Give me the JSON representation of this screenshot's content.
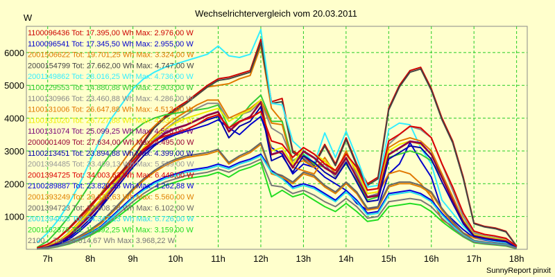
{
  "chart_data": {
    "type": "line",
    "title": "Wechselrichtervergleich vom 20.03.2011",
    "ylabel": "W",
    "xlabel": "",
    "credit": "SunnyReport pinxit",
    "x_unit": "h",
    "xlim": [
      6.5,
      18.25
    ],
    "ylim": [
      0,
      6800
    ],
    "x_ticks": [
      7,
      8,
      9,
      10,
      11,
      12,
      13,
      14,
      15,
      16,
      17,
      18
    ],
    "y_ticks": [
      1000,
      2000,
      3000,
      4000,
      5000,
      6000
    ],
    "x_tick_labels": [
      "7h",
      "8h",
      "9h",
      "10h",
      "11h",
      "12h",
      "13h",
      "14h",
      "15h",
      "16h",
      "17h",
      "18h"
    ],
    "y_tick_labels": [
      "1000",
      "2000",
      "3000",
      "4000",
      "5000",
      "6000"
    ],
    "grid": true,
    "legend_position": "top-left",
    "x": [
      6.75,
      7.0,
      7.25,
      7.5,
      7.75,
      8.0,
      8.25,
      8.5,
      8.75,
      9.0,
      9.25,
      9.5,
      9.75,
      10.0,
      10.25,
      10.5,
      10.75,
      11.0,
      11.25,
      11.5,
      11.75,
      12.0,
      12.25,
      12.5,
      12.75,
      13.0,
      13.25,
      13.5,
      13.75,
      14.0,
      14.25,
      14.5,
      14.75,
      15.0,
      15.25,
      15.5,
      15.75,
      16.0,
      16.25,
      16.5,
      16.75,
      17.0,
      17.25,
      17.5,
      17.75,
      18.0
    ],
    "series": [
      {
        "name": "1100096436 Tot: 17.395,00 Wh Max: 2.976,00 W",
        "color": "#CC0000",
        "values": [
          40,
          150,
          350,
          650,
          1000,
          1350,
          1700,
          2050,
          2400,
          2800,
          3300,
          3750,
          4050,
          4300,
          4500,
          4750,
          5000,
          5200,
          5250,
          5350,
          5450,
          6400,
          4500,
          4600,
          3000,
          2800,
          2600,
          3200,
          2600,
          3400,
          2600,
          2000,
          2200,
          4300,
          5000,
          5450,
          5550,
          4900,
          4000,
          3300,
          2200,
          800,
          700,
          650,
          550,
          100
        ]
      },
      {
        "name": "1100096541 Tot: 17.345,50 Wh Max: 2.955,00 W",
        "color": "#0000CC",
        "values": [
          20,
          60,
          150,
          300,
          550,
          850,
          1300,
          1800,
          2300,
          2700,
          2950,
          3200,
          3350,
          3500,
          3600,
          3700,
          3800,
          3950,
          3700,
          3500,
          3800,
          4050,
          3100,
          2900,
          2300,
          2600,
          2500,
          2200,
          2000,
          1800,
          1400,
          1200,
          1300,
          2300,
          2600,
          3250,
          2700,
          2200,
          1200,
          900,
          600,
          350,
          280,
          240,
          200,
          50
        ]
      },
      {
        "name": "2001506622 Tot: 19.701,25 Wh Max: 3.324,00 W",
        "color": "#E07800",
        "values": [
          30,
          110,
          250,
          500,
          850,
          1250,
          1700,
          2200,
          2650,
          3100,
          3450,
          3750,
          4000,
          4200,
          4450,
          4700,
          4950,
          5000,
          5050,
          5200,
          5300,
          6200,
          4300,
          3900,
          2500,
          2400,
          2300,
          2800,
          2300,
          3000,
          2300,
          1600,
          1700,
          2300,
          2400,
          2300,
          2000,
          1600,
          900,
          700,
          500,
          350,
          300,
          280,
          240,
          60
        ]
      },
      {
        "name": "2000154799 Tot: 27.662,00 Wh Max: 4.747,00 W",
        "color": "#444444",
        "values": [
          35,
          140,
          340,
          640,
          980,
          1320,
          1680,
          2020,
          2380,
          2780,
          3250,
          3700,
          4000,
          4250,
          4450,
          4700,
          4950,
          5150,
          5200,
          5300,
          5400,
          6300,
          4450,
          4500,
          2950,
          2750,
          2550,
          3150,
          2550,
          3350,
          2550,
          1950,
          2150,
          4250,
          4950,
          5400,
          5500,
          4850,
          3950,
          3250,
          2150,
          780,
          680,
          630,
          530,
          90
        ]
      },
      {
        "name": "2001149862 Tot: 28.016,25 Wh Max: 4.736,00 W",
        "color": "#33EEFF",
        "values": [
          200,
          500,
          900,
          1400,
          2000,
          2700,
          3400,
          4000,
          4450,
          4900,
          5200,
          5400,
          5550,
          5650,
          5750,
          5850,
          5950,
          6200,
          5900,
          5850,
          5950,
          6700,
          4450,
          4400,
          3300,
          3000,
          2600,
          3550,
          2800,
          3600,
          2800,
          1900,
          1950,
          3650,
          3850,
          3800,
          3100,
          2600,
          1500,
          1100,
          700,
          400,
          300,
          250,
          200,
          60
        ]
      },
      {
        "name": "1100129553 Tot: 14.880,88 Wh Max: 2.903,00 W",
        "color": "#33CC33",
        "values": [
          60,
          250,
          600,
          1000,
          1500,
          2000,
          2500,
          2950,
          3300,
          3600,
          3850,
          4000,
          4100,
          4150,
          4200,
          4250,
          4300,
          4400,
          3700,
          4000,
          4400,
          4700,
          3900,
          3900,
          2700,
          2900,
          2600,
          2500,
          2300,
          2600,
          2100,
          1500,
          1600,
          2800,
          2900,
          3000,
          2900,
          2700,
          2200,
          1500,
          900,
          500,
          400,
          350,
          280,
          80
        ]
      },
      {
        "name": "1100130966 Tot: 23.460,88 Wh Max: 4.286,00 W",
        "color": "#888888",
        "values": [
          20,
          90,
          220,
          450,
          750,
          1100,
          1450,
          1850,
          2250,
          2650,
          3000,
          3350,
          3650,
          3900,
          4100,
          4300,
          4450,
          4450,
          3900,
          4100,
          4200,
          4500,
          3700,
          3500,
          2700,
          2800,
          2500,
          2600,
          2200,
          2700,
          2300,
          1600,
          1700,
          3200,
          3500,
          3750,
          3650,
          3400,
          2600,
          1800,
          1000,
          500,
          400,
          350,
          300,
          80
        ]
      },
      {
        "name": "1100131006 Tot: 26.647,88 Wh Max: 4.513,00 W",
        "color": "#E07800",
        "values": [
          25,
          100,
          230,
          470,
          800,
          1150,
          1500,
          1900,
          2300,
          2700,
          3100,
          3450,
          3750,
          4000,
          4200,
          4400,
          4550,
          4550,
          4000,
          4150,
          4300,
          4550,
          3850,
          3800,
          2600,
          2700,
          2500,
          2700,
          2300,
          2900,
          2400,
          1700,
          1750,
          3100,
          3300,
          3400,
          3300,
          3000,
          2300,
          1600,
          900,
          450,
          380,
          330,
          280,
          70
        ]
      },
      {
        "name": "1100131020 Tot: 26.727,88 Wh Max: 4.534,00 W",
        "color": "#EEEE00",
        "values": [
          25,
          100,
          240,
          480,
          820,
          1170,
          1520,
          1920,
          2320,
          2720,
          3100,
          3400,
          3650,
          3850,
          4000,
          4100,
          4200,
          4300,
          3900,
          4100,
          4250,
          4550,
          3000,
          3100,
          2600,
          3100,
          2900,
          2700,
          2400,
          2900,
          2400,
          1700,
          1750,
          3000,
          3200,
          3300,
          3200,
          2900,
          2200,
          1500,
          900,
          450,
          380,
          330,
          280,
          70
        ]
      },
      {
        "name": "1100131074 Tot: 25.099,25 Wh Max: 4.565,00 W",
        "color": "#770077",
        "values": [
          20,
          80,
          200,
          420,
          720,
          1050,
          1400,
          1800,
          2200,
          2600,
          3000,
          3300,
          3550,
          3700,
          3800,
          3950,
          4100,
          4200,
          3600,
          3900,
          4050,
          4500,
          2900,
          3000,
          2500,
          3000,
          2800,
          2500,
          2300,
          2800,
          2200,
          1600,
          1650,
          2900,
          3100,
          3300,
          3250,
          2900,
          2200,
          1500,
          850,
          420,
          350,
          300,
          260,
          60
        ]
      },
      {
        "name": "2000001409 Tot: 27.634,00 Wh Max: 4.495,00 W",
        "color": "#990033",
        "values": [
          18,
          75,
          190,
          400,
          700,
          1020,
          1380,
          1780,
          2180,
          2580,
          2980,
          3280,
          3520,
          3680,
          3780,
          3930,
          4080,
          4180,
          3580,
          3880,
          4030,
          4480,
          2880,
          2980,
          2480,
          2980,
          2780,
          2480,
          2280,
          2780,
          2180,
          1580,
          1630,
          2880,
          3080,
          3280,
          3230,
          2880,
          2180,
          1480,
          830,
          410,
          340,
          290,
          250,
          55
        ]
      },
      {
        "name": "1100213451 Tot: 23.894,88 Wh Max: 4.399,00 W",
        "color": "#0000AA",
        "values": [
          15,
          60,
          160,
          350,
          620,
          930,
          1280,
          1680,
          2100,
          2500,
          2850,
          3150,
          3400,
          3550,
          3650,
          3800,
          3950,
          4050,
          3400,
          3750,
          3900,
          4350,
          2700,
          2850,
          2350,
          2850,
          2650,
          2350,
          2150,
          2650,
          2050,
          1450,
          1500,
          2750,
          2950,
          3150,
          3100,
          2750,
          2050,
          1400,
          780,
          390,
          320,
          270,
          230,
          50
        ]
      },
      {
        "name": "2001394485 Tot: 33.409,13 Wh Max: 5.589,00 W",
        "color": "#999999",
        "values": [
          40,
          150,
          340,
          620,
          950,
          1300,
          1650,
          2000,
          2350,
          2700,
          3050,
          3300,
          3450,
          3550,
          3650,
          3800,
          4000,
          4100,
          3700,
          3900,
          4000,
          4200,
          3300,
          3200,
          2800,
          3100,
          2900,
          2600,
          2400,
          2900,
          2500,
          1800,
          1850,
          3300,
          3500,
          3750,
          3700,
          3400,
          2600,
          1900,
          1100,
          550,
          450,
          400,
          330,
          90
        ]
      },
      {
        "name": "2001394725 Tot: 34.003,63 Wh Max: 6.448,00 W",
        "color": "#DD0000",
        "values": [
          42,
          155,
          345,
          625,
          955,
          1305,
          1655,
          2005,
          2355,
          2705,
          3055,
          3305,
          3455,
          3555,
          3655,
          3805,
          4005,
          4105,
          3705,
          3905,
          4005,
          4205,
          3305,
          3205,
          2805,
          3105,
          2905,
          2605,
          2405,
          2905,
          2505,
          1805,
          1855,
          3305,
          3505,
          3755,
          3705,
          3405,
          2605,
          1905,
          1105,
          555,
          455,
          405,
          335,
          92
        ]
      },
      {
        "name": "2100289887 Tot: 23.820,35 Wh Max: 4.262,88 W",
        "color": "#0000DD",
        "values": [
          10,
          40,
          100,
          200,
          350,
          500,
          700,
          1000,
          1300,
          1600,
          1850,
          2050,
          2200,
          2300,
          2400,
          2450,
          2500,
          2600,
          2500,
          2650,
          2750,
          2900,
          2400,
          2200,
          1900,
          2000,
          1900,
          1700,
          1500,
          1800,
          1500,
          1100,
          1150,
          1700,
          1750,
          1800,
          1700,
          1500,
          1100,
          750,
          450,
          250,
          200,
          170,
          140,
          30
        ]
      },
      {
        "name": "2001393249 Tot: 29.336,63 Wh Max: 5.560,00 W",
        "color": "#E08000",
        "values": [
          12,
          45,
          110,
          220,
          380,
          560,
          780,
          1100,
          1450,
          1800,
          2100,
          2350,
          2550,
          2700,
          2800,
          2850,
          2900,
          3000,
          2600,
          2800,
          2950,
          3200,
          2300,
          2200,
          2000,
          2300,
          2200,
          1900,
          1700,
          2000,
          1700,
          1200,
          1250,
          1900,
          2000,
          2000,
          1900,
          1700,
          1200,
          800,
          480,
          260,
          210,
          180,
          150,
          35
        ]
      },
      {
        "name": "2001394723 Tot: 32.608,38 Wh Max: 6.102,00 W",
        "color": "#666666",
        "values": [
          14,
          50,
          120,
          240,
          410,
          600,
          830,
          1150,
          1500,
          1850,
          2150,
          2400,
          2600,
          2750,
          2850,
          2900,
          2950,
          3050,
          2650,
          2850,
          3000,
          3250,
          2350,
          2250,
          2050,
          2350,
          2250,
          1950,
          1750,
          2050,
          1750,
          1250,
          1300,
          1950,
          2050,
          2050,
          1950,
          1750,
          1250,
          850,
          500,
          270,
          220,
          190,
          160,
          38
        ]
      },
      {
        "name": "2001394828 Tot: 34.347,13 Wh Max: 6.726,00 W",
        "color": "#22DDEE",
        "values": [
          10,
          38,
          95,
          190,
          330,
          480,
          670,
          960,
          1260,
          1560,
          1800,
          2000,
          2150,
          2250,
          2350,
          2400,
          2450,
          2550,
          2450,
          2600,
          2700,
          2850,
          2350,
          2150,
          1850,
          1950,
          1850,
          1650,
          1450,
          1750,
          1450,
          1050,
          1100,
          1650,
          1700,
          1750,
          1650,
          1450,
          1050,
          720,
          430,
          240,
          190,
          160,
          130,
          28
        ]
      },
      {
        "name": "2001162376 Tot: 16.392,25 Wh Max: 3.159,00 W",
        "color": "#22DD22",
        "values": [
          8,
          30,
          80,
          160,
          280,
          420,
          600,
          850,
          1100,
          1350,
          1600,
          1800,
          1950,
          2050,
          2150,
          2200,
          2250,
          2350,
          2200,
          2400,
          2500,
          2650,
          1600,
          1800,
          1600,
          1700,
          1500,
          1300,
          1150,
          1400,
          1150,
          850,
          900,
          1300,
          1350,
          1400,
          1350,
          1150,
          850,
          600,
          380,
          200,
          160,
          130,
          100,
          20
        ]
      },
      {
        "name": "2100... Tot: 28.614,67 Wh Max: 3.968,22 W",
        "color": "#777777",
        "values": [
          9,
          34,
          88,
          175,
          300,
          450,
          640,
          900,
          1180,
          1450,
          1700,
          1900,
          2050,
          2150,
          2250,
          2300,
          2350,
          2450,
          2350,
          2500,
          2600,
          2750,
          1950,
          1900,
          1700,
          1800,
          1650,
          1450,
          1300,
          1550,
          1300,
          950,
          1000,
          1450,
          1500,
          1550,
          1500,
          1300,
          950,
          650,
          400,
          220,
          175,
          145,
          115,
          24
        ]
      }
    ]
  }
}
